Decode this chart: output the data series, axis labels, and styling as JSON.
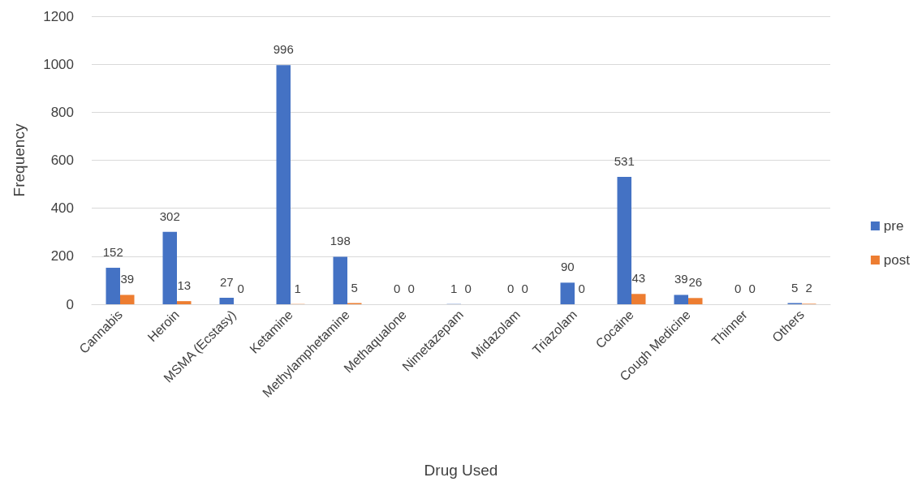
{
  "chart_data": {
    "type": "bar",
    "xlabel": "Drug Used",
    "ylabel": "Frequency",
    "categories": [
      "Cannabis",
      "Heroin",
      "MSMA (Ecstasy)",
      "Ketamine",
      "Methylamphetamine",
      "Methaqualone",
      "Nimetazepam",
      "Midazolam",
      "Triazolam",
      "Cocaine",
      "Cough Medicine",
      "Thinner",
      "Others"
    ],
    "series": [
      {
        "name": "pre",
        "color": "#4472c4",
        "values": [
          152,
          302,
          27,
          996,
          198,
          0,
          1,
          0,
          90,
          531,
          39,
          0,
          5
        ]
      },
      {
        "name": "post",
        "color": "#ed7d31",
        "values": [
          39,
          13,
          0,
          1,
          5,
          0,
          0,
          0,
          0,
          43,
          26,
          0,
          2
        ]
      }
    ],
    "ylim": [
      0,
      1200
    ],
    "yticks": [
      0,
      200,
      400,
      600,
      800,
      1000,
      1200
    ],
    "grid": "y",
    "legend": "right",
    "data_labels": true
  }
}
